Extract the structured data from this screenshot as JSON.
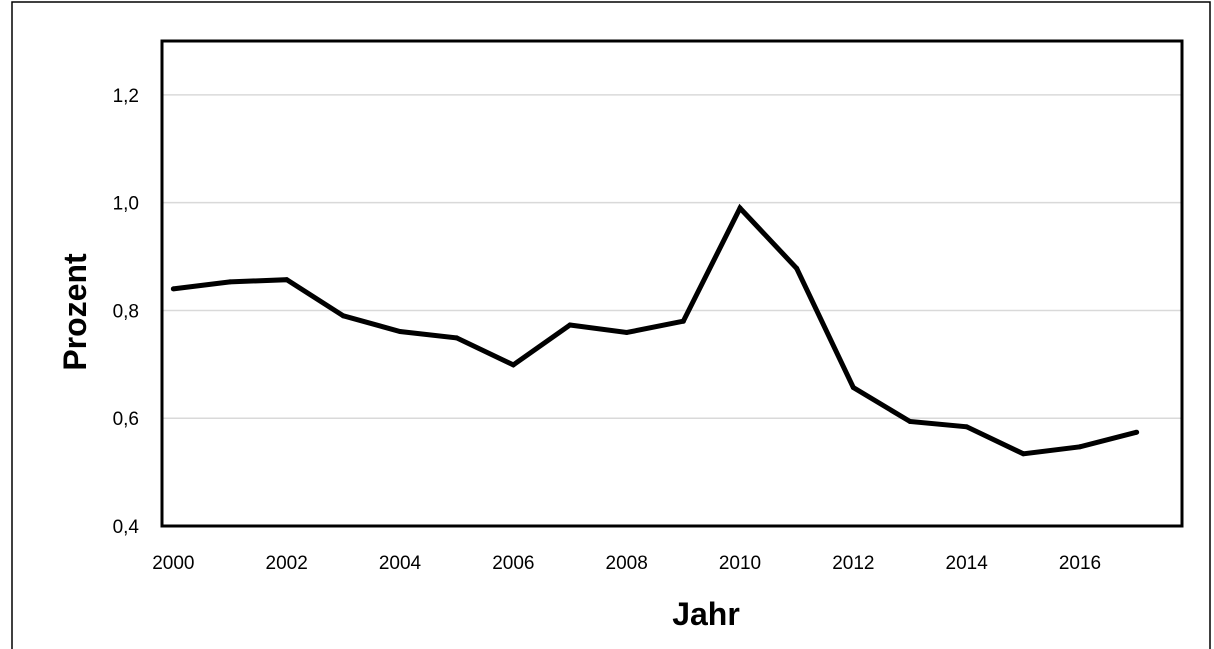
{
  "chart_data": {
    "type": "line",
    "title": "",
    "xlabel": "Jahr",
    "ylabel": "Prozent",
    "x": [
      2000,
      2001,
      2002,
      2003,
      2004,
      2005,
      2006,
      2007,
      2008,
      2009,
      2010,
      2011,
      2012,
      2013,
      2014,
      2015,
      2016,
      2017
    ],
    "series": [
      {
        "values": [
          0.84,
          0.853,
          0.857,
          0.79,
          0.761,
          0.749,
          0.699,
          0.773,
          0.759,
          0.78,
          0.99,
          0.878,
          0.657,
          0.594,
          0.584,
          0.534,
          0.547,
          0.574
        ]
      }
    ],
    "xlim": [
      1999.8,
      2017.8
    ],
    "ylim": [
      0.4,
      1.3
    ],
    "x_ticks": [
      "2000",
      "2002",
      "2004",
      "2006",
      "2008",
      "2010",
      "2012",
      "2014",
      "2016"
    ],
    "y_ticks": [
      "0,4",
      "0,6",
      "0,8",
      "1,0",
      "1,2"
    ],
    "grid": true,
    "legend": "none",
    "colors": {
      "line": "#000000",
      "grid": "#d9d9d9",
      "frame": "#000000"
    }
  }
}
